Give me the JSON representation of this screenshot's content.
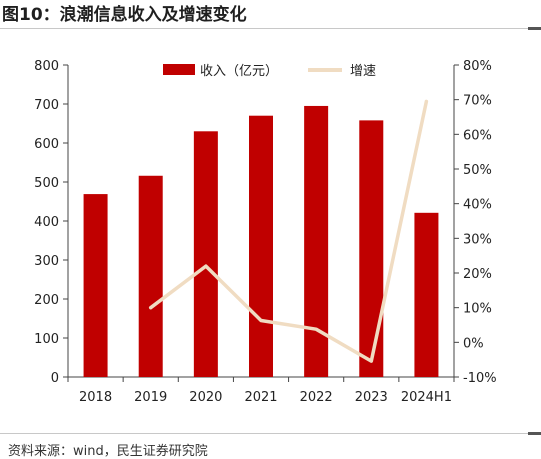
{
  "title": "图10：浪潮信息收入及增速变化",
  "source": "资料来源：wind，民生证券研究院",
  "chart_data": {
    "type": "bar",
    "categories": [
      "2018",
      "2019",
      "2020",
      "2021",
      "2022",
      "2023",
      "2024H1"
    ],
    "series": [
      {
        "name": "收入（亿元）",
        "type": "bar",
        "axis": "left",
        "color": "#c00000",
        "values": [
          469,
          516,
          630,
          670,
          695,
          658,
          421
        ]
      },
      {
        "name": "增速",
        "type": "line",
        "axis": "right",
        "color": "#f0dcc2",
        "values": [
          null,
          10.0,
          22.0,
          6.3,
          3.8,
          -5.4,
          69.5
        ]
      }
    ],
    "y_left": {
      "min": 0,
      "max": 800,
      "ticks": [
        "0",
        "100",
        "200",
        "300",
        "400",
        "500",
        "600",
        "700",
        "800"
      ]
    },
    "y_right": {
      "min": -10,
      "max": 80,
      "ticks": [
        "-10%",
        "0%",
        "10%",
        "20%",
        "30%",
        "40%",
        "50%",
        "60%",
        "70%",
        "80%"
      ]
    },
    "legend": "top-center",
    "grid": false
  }
}
